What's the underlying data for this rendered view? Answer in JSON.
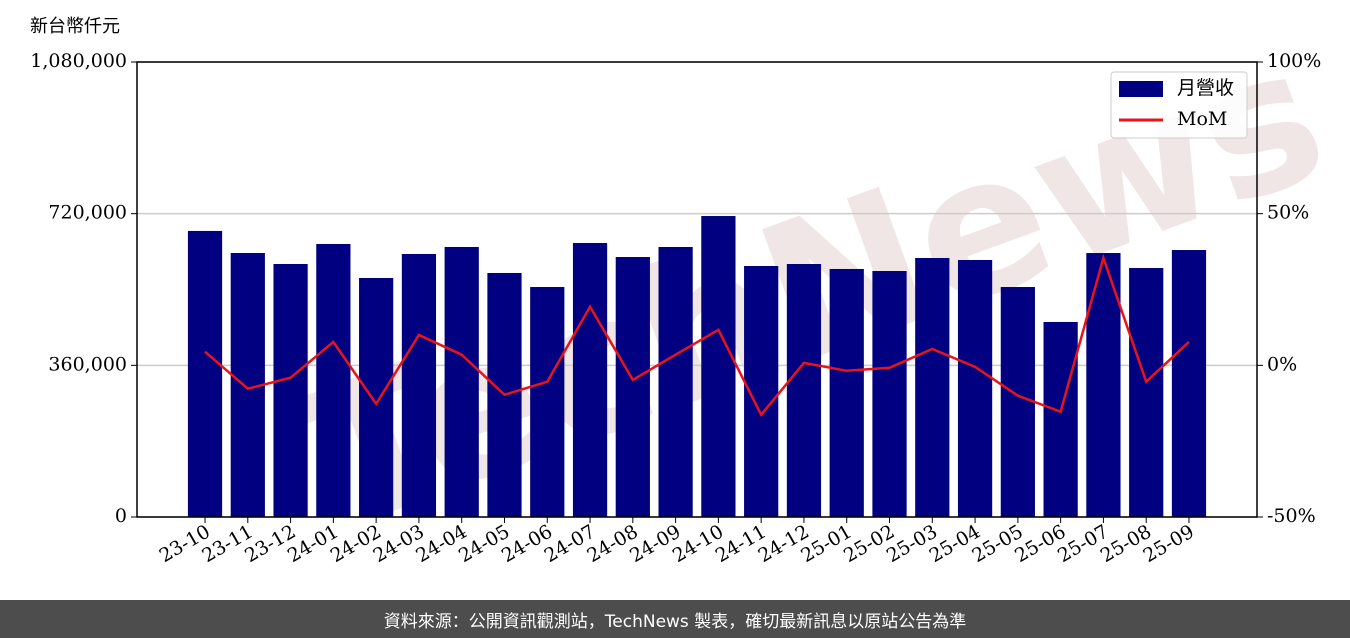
{
  "chart_data": {
    "type": "bar_line",
    "y_label": "新台幣仟元",
    "categories": [
      "23-10",
      "23-11",
      "23-12",
      "24-01",
      "24-02",
      "24-03",
      "24-04",
      "24-05",
      "24-06",
      "24-07",
      "24-08",
      "24-09",
      "24-10",
      "24-11",
      "24-12",
      "25-01",
      "25-02",
      "25-03",
      "25-04",
      "25-05",
      "25-06",
      "25-07",
      "25-08",
      "25-09"
    ],
    "series": [
      {
        "name": "月營收",
        "type": "bar",
        "color": "#000080",
        "values": [
          679000,
          626600,
          600500,
          648000,
          567300,
          624300,
          640900,
          579200,
          545900,
          650400,
          617100,
          640900,
          714400,
          595800,
          600500,
          588700,
          583900,
          614800,
          610000,
          545900,
          462900,
          626600,
          591000,
          633700
        ]
      },
      {
        "name": "MoM",
        "type": "line",
        "axis": "y2",
        "color": "#e8141a",
        "values": [
          4.5,
          -7.7,
          -4.1,
          7.7,
          -12.7,
          10,
          3.5,
          -9.7,
          -5.4,
          19.3,
          -4.8,
          3.5,
          11.7,
          -16.3,
          0.8,
          -1.8,
          -0.8,
          5.4,
          -0.5,
          -10,
          -15.3,
          35.4,
          -5.4,
          7.7
        ]
      }
    ],
    "ylim": [
      0,
      1080000
    ],
    "yticks": [
      0,
      {
        "value": 360000,
        "label": "360,000"
      },
      {
        "value": 720000,
        "label": "720,000"
      },
      {
        "value": 1080000,
        "label": "1,080,000"
      }
    ],
    "y2lim": [
      -50,
      100
    ],
    "y2ticks": [
      {
        "value": -50,
        "label": "-50%"
      },
      {
        "value": 0,
        "label": "0%"
      },
      {
        "value": 50,
        "label": "50%"
      },
      {
        "value": 100,
        "label": "100%"
      }
    ],
    "grid": true,
    "legend": "upper right",
    "watermark": "TechNews",
    "footer": "資料來源：公開資訊觀測站，TechNews 製表，確切最新訊息以原站公告為準"
  }
}
